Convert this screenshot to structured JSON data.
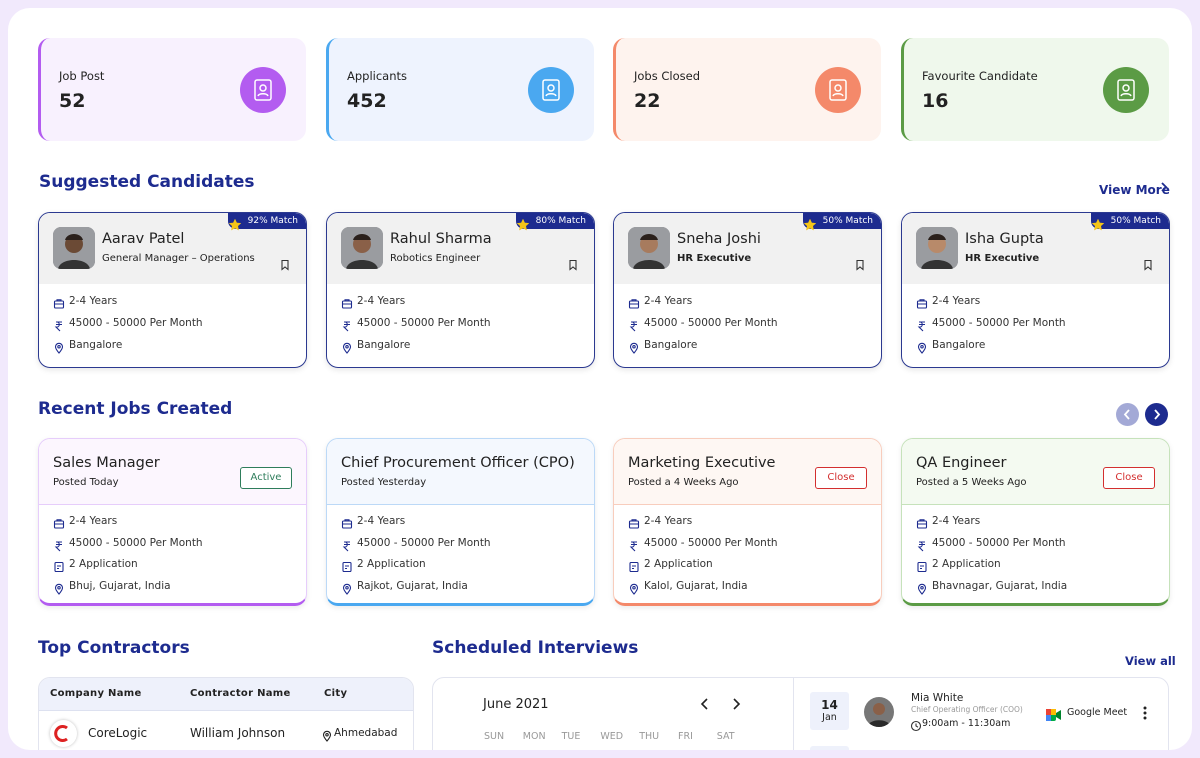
{
  "stats": [
    {
      "label": "Job Post",
      "value": 52
    },
    {
      "label": "Applicants",
      "value": 452
    },
    {
      "label": "Jobs Closed",
      "value": 22
    },
    {
      "label": "Favourite Candidate",
      "value": 16
    }
  ],
  "suggested": {
    "title": "Suggested Candidates",
    "view_more": "View More",
    "candidates": [
      {
        "name": "Aarav Patel",
        "role": "General Manager – Operations",
        "match": "92% Match",
        "experience": "2-4 Years",
        "salary": "45000 - 50000 Per Month",
        "location": "Bangalore"
      },
      {
        "name": "Rahul Sharma",
        "role": "Robotics Engineer",
        "match": "80% Match",
        "experience": "2-4 Years",
        "salary": "45000 - 50000 Per Month",
        "location": "Bangalore"
      },
      {
        "name": "Sneha Joshi",
        "role": "HR Executive",
        "match": "50% Match",
        "experience": "2-4 Years",
        "salary": "45000 - 50000 Per Month",
        "location": "Bangalore"
      },
      {
        "name": "Isha Gupta",
        "role": "HR Executive",
        "match": "50% Match",
        "experience": "2-4 Years",
        "salary": "45000 - 50000 Per Month",
        "location": "Bangalore"
      }
    ]
  },
  "recent_jobs": {
    "title": "Recent Jobs Created",
    "jobs": [
      {
        "title": "Sales Manager",
        "posted": "Posted Today",
        "status": "Active",
        "experience": "2-4 Years",
        "salary": "45000 - 50000 Per Month",
        "applications": "2 Application",
        "location": "Bhuj, Gujarat, India"
      },
      {
        "title": "Chief Procurement Officer (CPO)",
        "posted": "Posted Yesterday",
        "status": null,
        "experience": "2-4 Years",
        "salary": "45000 - 50000 Per Month",
        "applications": "2 Application",
        "location": "Rajkot, Gujarat, India"
      },
      {
        "title": "Marketing Executive",
        "posted": "Posted a 4 Weeks Ago",
        "status": "Close",
        "experience": "2-4 Years",
        "salary": "45000 - 50000 Per Month",
        "applications": "2 Application",
        "location": "Kalol, Gujarat, India"
      },
      {
        "title": "QA Engineer",
        "posted": "Posted a 5 Weeks Ago",
        "status": "Close",
        "experience": "2-4 Years",
        "salary": "45000 - 50000 Per Month",
        "applications": "2 Application",
        "location": "Bhavnagar, Gujarat, India"
      }
    ]
  },
  "contractors": {
    "title": "Top Contractors",
    "headers": [
      "Company Name",
      "Contractor Name",
      "City"
    ],
    "rows": [
      [
        "CoreLogic",
        "William Johnson",
        "Ahmedabad"
      ]
    ]
  },
  "interviews": {
    "title": "Scheduled Interviews",
    "view_all": "View all",
    "month": "June 2021",
    "weekdays": [
      "SUN",
      "MON",
      "TUE",
      "WED",
      "THU",
      "FRI",
      "SAT"
    ],
    "items": [
      {
        "day": 14,
        "month": "Jan",
        "name": "Mia White",
        "role": "Chief Operating Officer (COO)",
        "time": "9:00am - 11:30am",
        "platform": "Google Meet"
      }
    ]
  }
}
